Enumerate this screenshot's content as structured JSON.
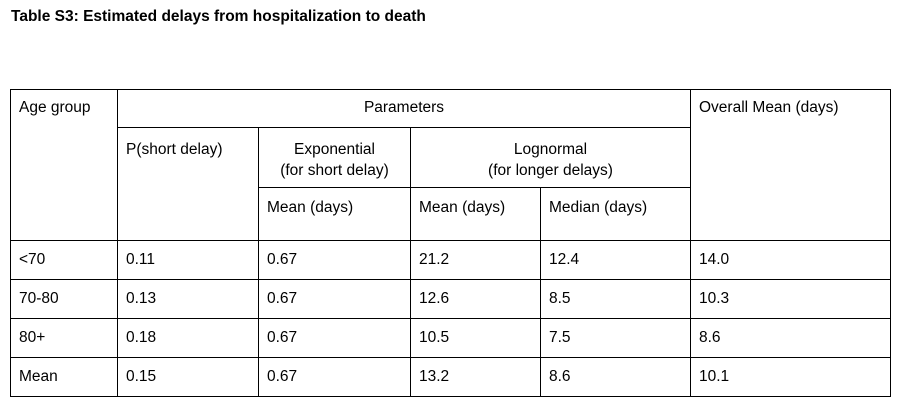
{
  "title": "Table S3: Estimated delays from hospitalization to death",
  "header": {
    "age_group": "Age group",
    "parameters": "Parameters",
    "overall_mean": "Overall Mean (days)",
    "p_short_delay": "P(short delay)",
    "exponential_line1": "Exponential",
    "exponential_line2": "(for short delay)",
    "lognormal_line1": "Lognormal",
    "lognormal_line2": "(for longer delays)",
    "exp_mean": "Mean (days)",
    "logn_mean": "Mean (days)",
    "logn_median": "Median (days)"
  },
  "rows": [
    {
      "age": "<70",
      "p_short": "0.11",
      "exp_mean": "0.67",
      "logn_mean": "21.2",
      "logn_median": "12.4",
      "overall": "14.0"
    },
    {
      "age": "70-80",
      "p_short": "0.13",
      "exp_mean": "0.67",
      "logn_mean": "12.6",
      "logn_median": "8.5",
      "overall": "10.3"
    },
    {
      "age": "80+",
      "p_short": "0.18",
      "exp_mean": "0.67",
      "logn_mean": "10.5",
      "logn_median": "7.5",
      "overall": "8.6"
    },
    {
      "age": "Mean",
      "p_short": "0.15",
      "exp_mean": "0.67",
      "logn_mean": "13.2",
      "logn_median": "8.6",
      "overall": "10.1"
    }
  ]
}
